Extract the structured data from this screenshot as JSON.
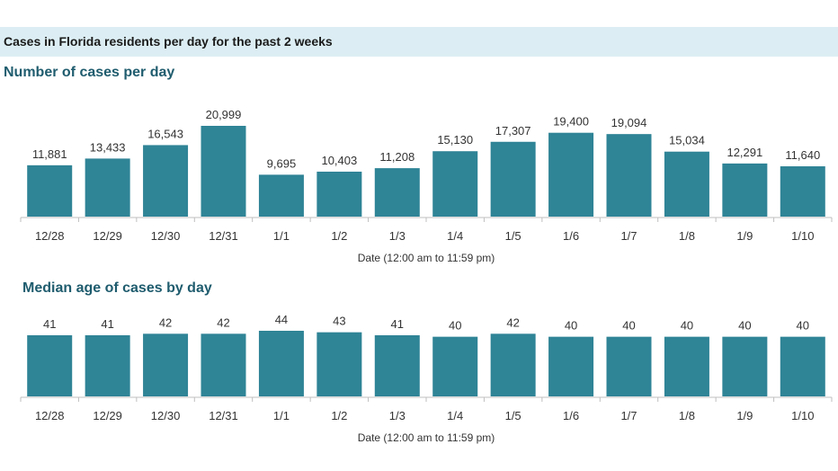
{
  "header": {
    "title": "Cases in Florida residents per day for the past 2 weeks"
  },
  "colors": {
    "bar": "#2f8496",
    "axis": "#bfbfbf",
    "header_band": "#dceef3",
    "title": "#1f5c6e"
  },
  "chart_data": [
    {
      "type": "bar",
      "title": "Number of cases per day",
      "xlabel": "Date (12:00 am to 11:59 pm)",
      "ylabel": "",
      "categories": [
        "12/28",
        "12/29",
        "12/30",
        "12/31",
        "1/1",
        "1/2",
        "1/3",
        "1/4",
        "1/5",
        "1/6",
        "1/7",
        "1/8",
        "1/9",
        "1/10"
      ],
      "values": [
        11881,
        13433,
        16543,
        20999,
        9695,
        10403,
        11208,
        15130,
        17307,
        19400,
        19094,
        15034,
        12291,
        11640
      ],
      "value_labels": [
        "11,881",
        "13,433",
        "16,543",
        "20,999",
        "9,695",
        "10,403",
        "11,208",
        "15,130",
        "17,307",
        "19,400",
        "19,094",
        "15,034",
        "12,291",
        "11,640"
      ],
      "ylim": [
        0,
        21000
      ],
      "grid": false,
      "legend": "none"
    },
    {
      "type": "bar",
      "title": "Median age of cases by day",
      "xlabel": "Date (12:00 am to 11:59 pm)",
      "ylabel": "",
      "categories": [
        "12/28",
        "12/29",
        "12/30",
        "12/31",
        "1/1",
        "1/2",
        "1/3",
        "1/4",
        "1/5",
        "1/6",
        "1/7",
        "1/8",
        "1/9",
        "1/10"
      ],
      "values": [
        41,
        41,
        42,
        42,
        44,
        43,
        41,
        40,
        42,
        40,
        40,
        40,
        40,
        40
      ],
      "value_labels": [
        "41",
        "41",
        "42",
        "42",
        "44",
        "43",
        "41",
        "40",
        "42",
        "40",
        "40",
        "40",
        "40",
        "40"
      ],
      "ylim": [
        0,
        44
      ],
      "grid": false,
      "legend": "none"
    }
  ]
}
